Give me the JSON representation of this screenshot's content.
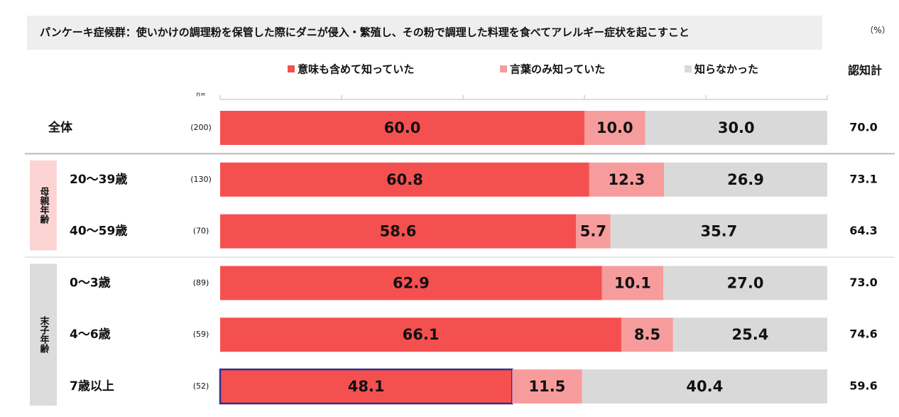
{
  "chart_data": {
    "type": "bar",
    "orientation": "horizontal",
    "stacked": true,
    "title": "パンケーキ症候群：使いかけの調理粉を保管した際にダニが侵入・繁殖し、その粉で調理した料理を食べてアレルギー症状を起こすこと",
    "unit_label": "（%）",
    "n_label": "n=",
    "categories": [
      "全体",
      "20〜39歳",
      "40〜59歳",
      "0〜3歳",
      "4〜6歳",
      "7歳以上"
    ],
    "n_values": [
      "(200)",
      "(130)",
      "(70)",
      "(89)",
      "(59)",
      "(52)"
    ],
    "groups": [
      {
        "label": "母親年齢",
        "color": "#fcd4d4"
      },
      {
        "label": "末子年齢",
        "color": "#dcdcdc"
      }
    ],
    "category_group": [
      null,
      0,
      0,
      1,
      1,
      1
    ],
    "series": [
      {
        "name": "意味も含めて知っていた",
        "color": "#f55050",
        "values": [
          60,
          60.8,
          58.6,
          62.9,
          66.1,
          48.1
        ],
        "value_labels": [
          "60.0",
          "60.8",
          "58.6",
          "62.9",
          "66.1",
          "48.1"
        ]
      },
      {
        "name": "言葉のみ知っていた",
        "color": "#f79c9c",
        "values": [
          10,
          12.3,
          5.7,
          10.1,
          8.5,
          11.5
        ],
        "value_labels": [
          "10.0",
          "12.3",
          "5.7",
          "10.1",
          "8.5",
          "11.5"
        ]
      },
      {
        "name": "知らなかった",
        "color": "#d9d9d9",
        "values": [
          30,
          26.9,
          35.7,
          27,
          25.4,
          40.4
        ],
        "value_labels": [
          "30.0",
          "26.9",
          "35.7",
          "27.0",
          "25.4",
          "40.4"
        ]
      }
    ],
    "totals": {
      "name": "認知計",
      "values": [
        70,
        73.1,
        64.3,
        73,
        74.6,
        59.6
      ],
      "value_labels": [
        "70.0",
        "73.1",
        "64.3",
        "73.0",
        "74.6",
        "59.6"
      ]
    },
    "xlim": [
      0,
      100
    ],
    "xticks": [
      0,
      20,
      40,
      60,
      80,
      100
    ],
    "highlight": {
      "series": 0,
      "category": 5,
      "color": "#2e3192"
    }
  }
}
